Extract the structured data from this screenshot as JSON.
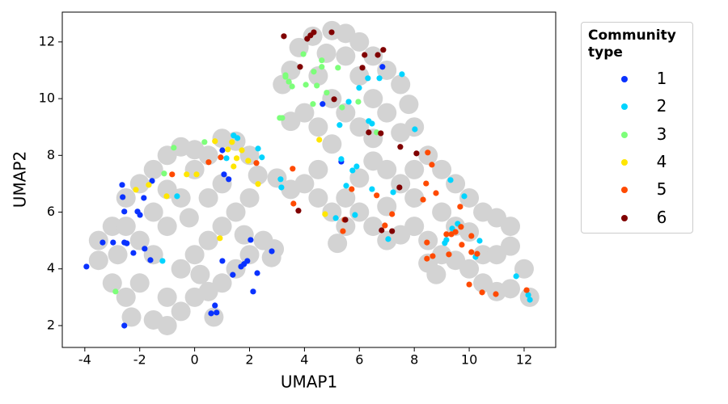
{
  "chart_data": {
    "type": "scatter",
    "xlabel": "UMAP1",
    "ylabel": "UMAP2",
    "xlim": [
      -4.82,
      13.15
    ],
    "ylim": [
      1.23,
      13.05
    ],
    "xticks": [
      -4,
      -2,
      0,
      2,
      4,
      6,
      8,
      10,
      12
    ],
    "yticks": [
      2,
      4,
      6,
      8,
      10,
      12
    ],
    "legend_title": "Community type",
    "series": [
      {
        "color": "#d3d3d3",
        "x": [
          -3.5,
          -3,
          -2.8,
          -2.5,
          -2.3,
          -2,
          -1.5,
          -1,
          -0.5,
          0,
          0.5,
          1,
          1.5,
          2,
          2.5,
          2.9,
          -3,
          -2.5,
          -2.5,
          -2,
          -1.5,
          -1,
          -0.5,
          0,
          0.5,
          1,
          1.5,
          2,
          2.3,
          2,
          1.5,
          1,
          0.5,
          0,
          -0.5,
          -1,
          -1.5,
          -1,
          -0.5,
          0,
          -1.5,
          -2,
          0.5,
          1,
          -0.2,
          0.2,
          -1,
          1.8,
          -3.5,
          0.7,
          2.8,
          3,
          3.5,
          3.2,
          3.5,
          3.8,
          4.3,
          5,
          5.5,
          6,
          6.5,
          7,
          7.5,
          7.8,
          8,
          7.5,
          7,
          6.5,
          6,
          5.5,
          4.8,
          4.5,
          5,
          5.5,
          6,
          4,
          3.5,
          4.5,
          6.5,
          5,
          4,
          4.5,
          5,
          5.5,
          6,
          6.5,
          7,
          7.5,
          8,
          8.5,
          9,
          9.5,
          10,
          10.5,
          11,
          11.5,
          11.5,
          12,
          12.2,
          11.5,
          11,
          10.5,
          10,
          9.5,
          9,
          8.5,
          8.5,
          8,
          7.5,
          7,
          6.5,
          6,
          7,
          8,
          9,
          10,
          10.5,
          9.5,
          5.5,
          5.2,
          4.5,
          11,
          8.8
        ],
        "y": [
          4.3,
          3.5,
          4.5,
          3,
          2.3,
          3.5,
          2.2,
          2,
          2.5,
          3,
          3.2,
          3.5,
          4,
          4.5,
          5,
          4.7,
          5.5,
          5.5,
          6.5,
          7,
          7.5,
          8,
          8.3,
          8.2,
          8,
          8.6,
          8.5,
          8,
          7.3,
          6.5,
          6,
          5.5,
          5,
          4.5,
          4,
          3,
          4.5,
          5.5,
          6.5,
          7.5,
          6,
          5,
          6.5,
          7,
          5.8,
          3.8,
          6.8,
          5.2,
          5,
          2.3,
          4.4,
          7.2,
          6.8,
          10.5,
          11,
          11.8,
          12.2,
          12.4,
          12.3,
          12,
          11.5,
          11,
          10.5,
          9.8,
          9,
          8.8,
          9.5,
          10,
          10.8,
          11.5,
          11.6,
          10.8,
          10,
          9.5,
          9,
          9.5,
          9.2,
          9,
          8.6,
          8.4,
          7,
          6.5,
          6,
          6.5,
          7.2,
          7.8,
          7.5,
          7,
          7.5,
          8,
          7.5,
          7,
          6.5,
          6,
          5.8,
          5.5,
          4.8,
          4,
          3,
          3.3,
          3.2,
          3.5,
          4,
          4.3,
          4.5,
          4.2,
          5,
          5.5,
          5.2,
          5,
          5.5,
          6,
          6.2,
          6.5,
          6,
          5.3,
          4.5,
          5.5,
          5.5,
          4.9,
          7.5,
          4.5,
          3.8
        ]
      },
      {
        "name": "1",
        "color": "#0a32ff",
        "x": [
          -3.94,
          -3.35,
          -2.97,
          -2.56,
          -2.64,
          -2.62,
          -2.56,
          -2.47,
          -2.23,
          -2.08,
          -1.99,
          -1.85,
          -1.82,
          -1.55,
          -1.61,
          -2.56,
          0.6,
          0.74,
          0.8,
          1.01,
          1.07,
          1.24,
          1.01,
          1.39,
          1.69,
          1.8,
          1.92,
          2.04,
          2.13,
          2.28,
          2.81,
          6.84,
          4.66,
          5.34
        ],
        "y": [
          4.08,
          4.93,
          4.93,
          4.93,
          6.96,
          6.53,
          6.02,
          4.9,
          4.56,
          6.02,
          5.9,
          6.5,
          4.71,
          7.1,
          4.31,
          2.0,
          2.43,
          2.71,
          2.46,
          8.18,
          7.33,
          7.16,
          4.28,
          3.79,
          4.08,
          4.17,
          4.28,
          5.02,
          3.2,
          3.85,
          4.62,
          11.12,
          9.81,
          7.78
        ]
      },
      {
        "name": "2",
        "color": "#00d4ff",
        "x": [
          1.42,
          1.56,
          2.31,
          2.45,
          1.16,
          3.13,
          3.16,
          -0.64,
          -1.17,
          5.99,
          6.31,
          6.73,
          7.55,
          5.61,
          5.28,
          5.34,
          5.75,
          5.9,
          6.34,
          6.46,
          8.02,
          5.52,
          6.46,
          7.23,
          5.14,
          5.84,
          7.05,
          9.32,
          9.82,
          9.58,
          9.38,
          9.17,
          9.11,
          10.38,
          10.23,
          11.71,
          12.15,
          12.21
        ],
        "y": [
          8.7,
          8.61,
          8.24,
          7.93,
          7.9,
          7.16,
          6.87,
          6.56,
          4.28,
          10.38,
          10.72,
          10.72,
          10.86,
          9.89,
          9.07,
          7.87,
          7.47,
          7.61,
          9.21,
          9.12,
          8.92,
          6.93,
          6.81,
          6.7,
          5.79,
          5.9,
          5.05,
          7.13,
          6.56,
          5.59,
          5.42,
          5.02,
          4.91,
          4.99,
          4.42,
          3.74,
          3.08,
          2.91
        ]
      },
      {
        "name": "3",
        "color": "#7dff7a",
        "x": [
          -0.76,
          -1.11,
          0.36,
          -2.88,
          3.1,
          3.19,
          3.31,
          3.43,
          3.55,
          3.96,
          4.05,
          4.34,
          4.63,
          4.63,
          4.45,
          4.81,
          4.31,
          5.22,
          5.37,
          5.96,
          6.63,
          3.31
        ],
        "y": [
          8.27,
          7.36,
          8.47,
          3.2,
          9.32,
          9.32,
          10.77,
          10.6,
          10.43,
          11.57,
          10.49,
          10.95,
          11.35,
          11.12,
          10.46,
          10.21,
          9.81,
          11.09,
          9.69,
          9.89,
          8.81,
          10.83
        ]
      },
      {
        "name": "4",
        "color": "#ffe600",
        "x": [
          -2.14,
          -1.67,
          -1.02,
          -0.29,
          0.07,
          0.74,
          1.21,
          1.36,
          1.53,
          1.72,
          1.95,
          2.31,
          1.42,
          0.92,
          4.54,
          4.75
        ],
        "y": [
          6.79,
          6.96,
          6.56,
          7.33,
          7.33,
          8.5,
          8.21,
          8.47,
          7.9,
          8.18,
          7.81,
          6.99,
          7.61,
          5.08,
          8.55,
          5.93
        ]
      },
      {
        "name": "5",
        "color": "#ff4a00",
        "x": [
          -0.82,
          0.51,
          0.95,
          2.25,
          3.57,
          3.6,
          5.46,
          5.4,
          5.72,
          6.63,
          7.19,
          6.93,
          8.49,
          8.64,
          8.43,
          8.79,
          8.32,
          8.46,
          8.46,
          8.67,
          9.17,
          9.35,
          9.5,
          9.67,
          9.7,
          9.73,
          10.08,
          10.08,
          10.29,
          10.0,
          10.47,
          10.97,
          12.09,
          9.26
        ],
        "y": [
          7.33,
          7.76,
          7.93,
          7.73,
          7.53,
          6.3,
          5.73,
          5.33,
          6.81,
          6.59,
          5.93,
          5.53,
          8.1,
          7.67,
          7.01,
          6.67,
          6.44,
          4.93,
          4.36,
          4.45,
          5.22,
          5.22,
          5.3,
          6.19,
          5.48,
          4.85,
          5.16,
          4.59,
          4.53,
          3.45,
          3.17,
          3.11,
          3.25,
          4.51
        ]
      },
      {
        "name": "6",
        "color": "#800000",
        "x": [
          3.25,
          4.1,
          4.22,
          4.34,
          4.99,
          3.84,
          5.08,
          6.11,
          6.19,
          6.67,
          6.87,
          6.34,
          6.78,
          7.49,
          8.08,
          7.46,
          3.78,
          5.49,
          6.81,
          7.19
        ],
        "y": [
          12.2,
          12.11,
          12.23,
          12.34,
          12.34,
          11.12,
          9.98,
          11.09,
          11.54,
          11.54,
          11.72,
          8.81,
          8.78,
          8.3,
          8.07,
          6.87,
          6.05,
          5.73,
          5.36,
          5.33
        ]
      }
    ]
  }
}
